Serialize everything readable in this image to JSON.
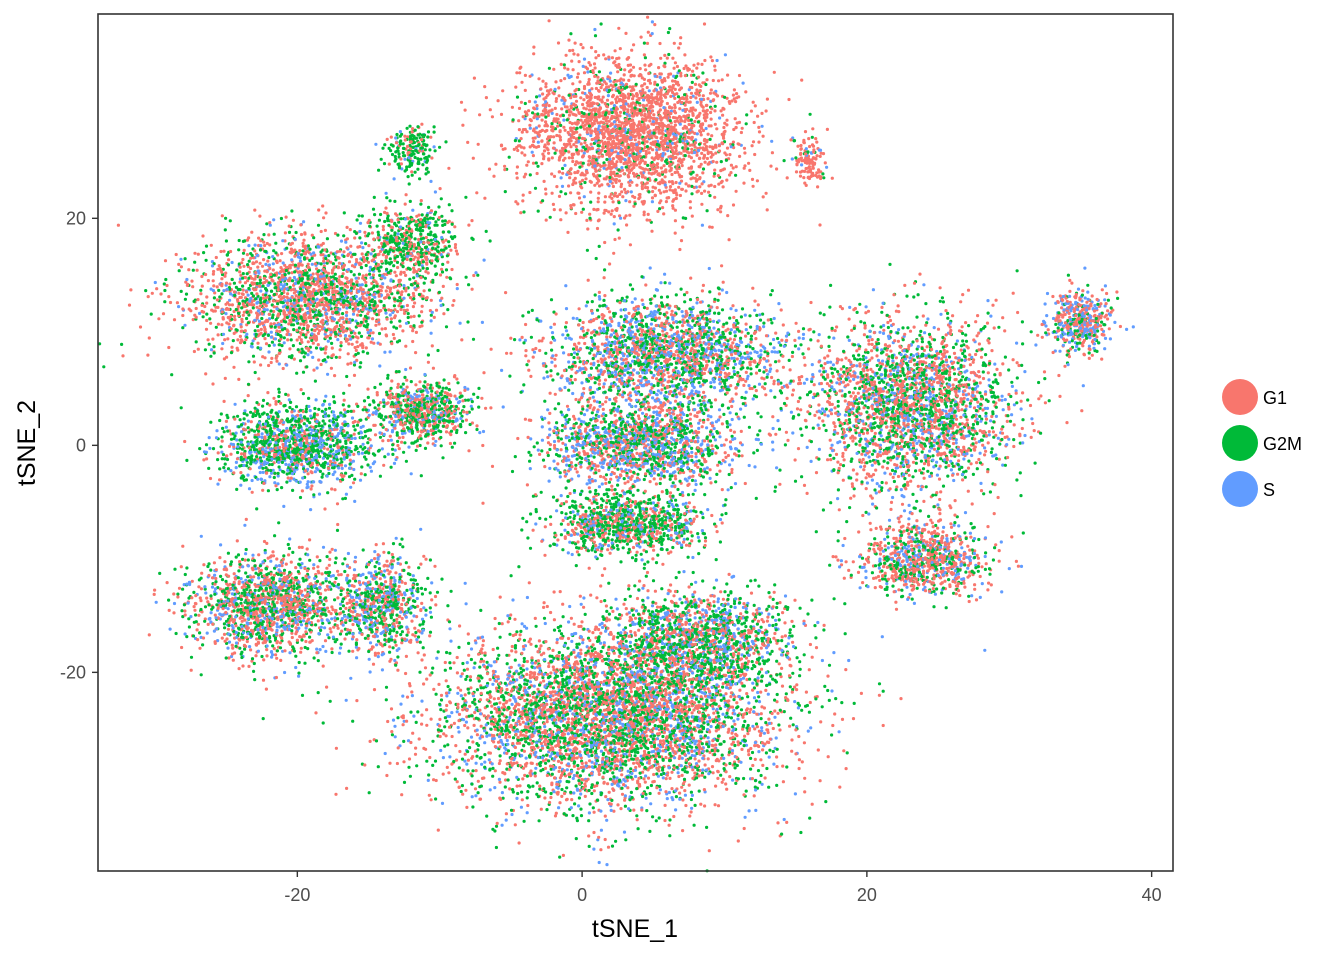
{
  "chart_data": {
    "type": "scatter",
    "title": "",
    "xlabel": "tSNE_1",
    "ylabel": "tSNE_2",
    "xlim": [
      -34,
      41.5
    ],
    "ylim": [
      -37.5,
      38
    ],
    "x_ticks": [
      -20,
      0,
      20,
      40
    ],
    "y_ticks": [
      -20,
      0,
      20
    ],
    "grid": false,
    "legend_position": "right",
    "series": [
      {
        "name": "G1",
        "color": "#F8766D"
      },
      {
        "name": "G2M",
        "color": "#00BA38"
      },
      {
        "name": "S",
        "color": "#619CFF"
      }
    ],
    "clusters": [
      {
        "center": [
          3.5,
          27.5
        ],
        "spread": [
          7,
          6
        ],
        "weights": [
          0.82,
          0.1,
          0.08
        ],
        "approx_points": 2600
      },
      {
        "center": [
          -19,
          13
        ],
        "spread": [
          7.5,
          5
        ],
        "weights": [
          0.55,
          0.3,
          0.15
        ],
        "approx_points": 2200
      },
      {
        "center": [
          -12,
          18
        ],
        "spread": [
          3,
          3
        ],
        "weights": [
          0.3,
          0.6,
          0.1
        ],
        "approx_points": 500
      },
      {
        "center": [
          -12,
          26
        ],
        "spread": [
          1.5,
          2
        ],
        "weights": [
          0.2,
          0.7,
          0.1
        ],
        "approx_points": 200
      },
      {
        "center": [
          6,
          8
        ],
        "spread": [
          7.5,
          4.5
        ],
        "weights": [
          0.35,
          0.35,
          0.3
        ],
        "approx_points": 2100
      },
      {
        "center": [
          23,
          3.5
        ],
        "spread": [
          6.5,
          7
        ],
        "weights": [
          0.45,
          0.35,
          0.2
        ],
        "approx_points": 2600
      },
      {
        "center": [
          35,
          11
        ],
        "spread": [
          2,
          2.5
        ],
        "weights": [
          0.45,
          0.2,
          0.35
        ],
        "approx_points": 450
      },
      {
        "center": [
          16,
          25
        ],
        "spread": [
          1,
          2
        ],
        "weights": [
          0.85,
          0.1,
          0.05
        ],
        "approx_points": 120
      },
      {
        "center": [
          -20,
          0
        ],
        "spread": [
          5,
          3.5
        ],
        "weights": [
          0.2,
          0.5,
          0.3
        ],
        "approx_points": 1300
      },
      {
        "center": [
          -11,
          3
        ],
        "spread": [
          3,
          2.5
        ],
        "weights": [
          0.4,
          0.45,
          0.15
        ],
        "approx_points": 700
      },
      {
        "center": [
          4,
          0
        ],
        "spread": [
          6,
          3.5
        ],
        "weights": [
          0.35,
          0.35,
          0.3
        ],
        "approx_points": 1500
      },
      {
        "center": [
          3,
          -7
        ],
        "spread": [
          5,
          2.5
        ],
        "weights": [
          0.3,
          0.55,
          0.15
        ],
        "approx_points": 1000
      },
      {
        "center": [
          24,
          -10
        ],
        "spread": [
          4,
          3
        ],
        "weights": [
          0.55,
          0.25,
          0.2
        ],
        "approx_points": 900
      },
      {
        "center": [
          -22,
          -14
        ],
        "spread": [
          5,
          4
        ],
        "weights": [
          0.45,
          0.35,
          0.2
        ],
        "approx_points": 1500
      },
      {
        "center": [
          -14,
          -14
        ],
        "spread": [
          3,
          4
        ],
        "weights": [
          0.35,
          0.4,
          0.25
        ],
        "approx_points": 700
      },
      {
        "center": [
          2,
          -24
        ],
        "spread": [
          11,
          7
        ],
        "weights": [
          0.45,
          0.35,
          0.2
        ],
        "approx_points": 5000
      },
      {
        "center": [
          8,
          -17
        ],
        "spread": [
          6,
          4
        ],
        "weights": [
          0.3,
          0.45,
          0.25
        ],
        "approx_points": 1400
      }
    ]
  },
  "legend": {
    "items": [
      {
        "label": "G1",
        "color": "#F8766D"
      },
      {
        "label": "G2M",
        "color": "#00BA38"
      },
      {
        "label": "S",
        "color": "#619CFF"
      }
    ]
  }
}
